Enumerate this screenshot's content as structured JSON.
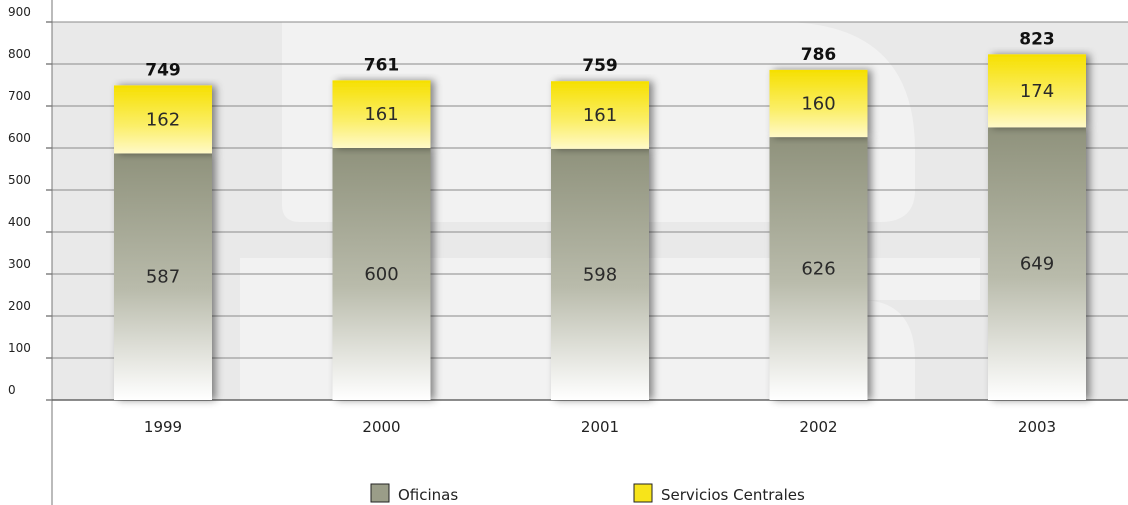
{
  "colors": {
    "oficinas": "#9a9d88",
    "servicios_centrales": "#f7e41a",
    "plot_background": "#e9e9e9",
    "watermark": "#f2f2f2",
    "grid": "#8a8a8a"
  },
  "chart_data": {
    "type": "bar",
    "stacked": true,
    "categories": [
      "1999",
      "2000",
      "2001",
      "2002",
      "2003"
    ],
    "series": [
      {
        "name": "Oficinas",
        "values": [
          587,
          600,
          598,
          626,
          649
        ]
      },
      {
        "name": "Servicios Centrales",
        "values": [
          162,
          161,
          161,
          160,
          174
        ]
      }
    ],
    "totals": [
      749,
      761,
      759,
      786,
      823
    ],
    "ylim": [
      0,
      900
    ],
    "yticks": [
      0,
      100,
      200,
      300,
      400,
      500,
      600,
      700,
      800,
      900
    ],
    "grid": true,
    "legend_position": "bottom",
    "title": "",
    "xlabel": "",
    "ylabel": ""
  }
}
